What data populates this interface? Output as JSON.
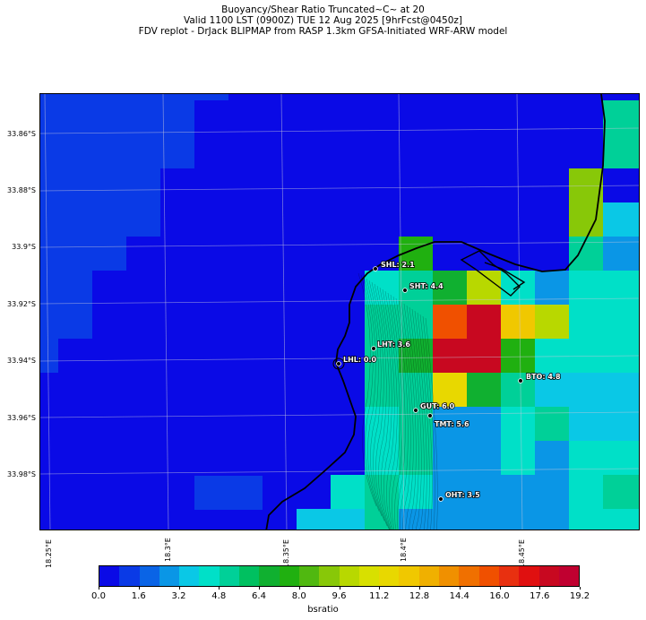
{
  "title": {
    "line1": "Buoyancy/Shear Ratio Truncated~C~    at 20",
    "line2": "Valid 1100 LST (0900Z) TUE 12 Aug 2025 [9hrFcst@0450z]",
    "line3": "FDV replot - DrJack BLIPMAP from RASP 1.3km GFSA-Initiated WRF-ARW model"
  },
  "map": {
    "lat_labels": [
      "33.86°S",
      "33.88°S",
      "33.9°S",
      "33.92°S",
      "33.94°S",
      "33.96°S",
      "33.98°S"
    ],
    "lon_labels": [
      "18.25°E",
      "18.3°E",
      "18.35°E",
      "18.4°E",
      "18.45°E"
    ],
    "sites": [
      {
        "label": "SHL: 2.1",
        "code": "SHL",
        "value": 2.1
      },
      {
        "label": "SHT: 4.4",
        "code": "SHT",
        "value": 4.4
      },
      {
        "label": "LHT: 3.6",
        "code": "LHT",
        "value": 3.6
      },
      {
        "label": "LHL: 0.0",
        "code": "LHL",
        "value": 0.0
      },
      {
        "label": "BTO: 4.8",
        "code": "BTO",
        "value": 4.8
      },
      {
        "label": "GUT: 6.0",
        "code": "GUT",
        "value": 6.0
      },
      {
        "label": "TMT: 5.6",
        "code": "TMT",
        "value": 5.6
      },
      {
        "label": "OHT: 3.5",
        "code": "OHT",
        "value": 3.5
      }
    ]
  },
  "colorbar": {
    "label": "bsratio",
    "tick_labels": [
      "0.0",
      "1.6",
      "3.2",
      "4.8",
      "6.4",
      "8.0",
      "9.6",
      "11.2",
      "12.8",
      "14.4",
      "16.0",
      "17.6",
      "19.2"
    ],
    "colors": [
      "#0a0ae6",
      "#0a3ae6",
      "#0a64e6",
      "#0a96e6",
      "#0ac8e6",
      "#00e0c8",
      "#00d098",
      "#00c060",
      "#10b030",
      "#20b010",
      "#50b810",
      "#88c808",
      "#b8d800",
      "#d8e000",
      "#e8d800",
      "#f0c800",
      "#f0b000",
      "#f09000",
      "#f07000",
      "#f05000",
      "#e83010",
      "#e01010",
      "#c80820",
      "#c00030"
    ],
    "min": 0,
    "max": 20
  }
}
